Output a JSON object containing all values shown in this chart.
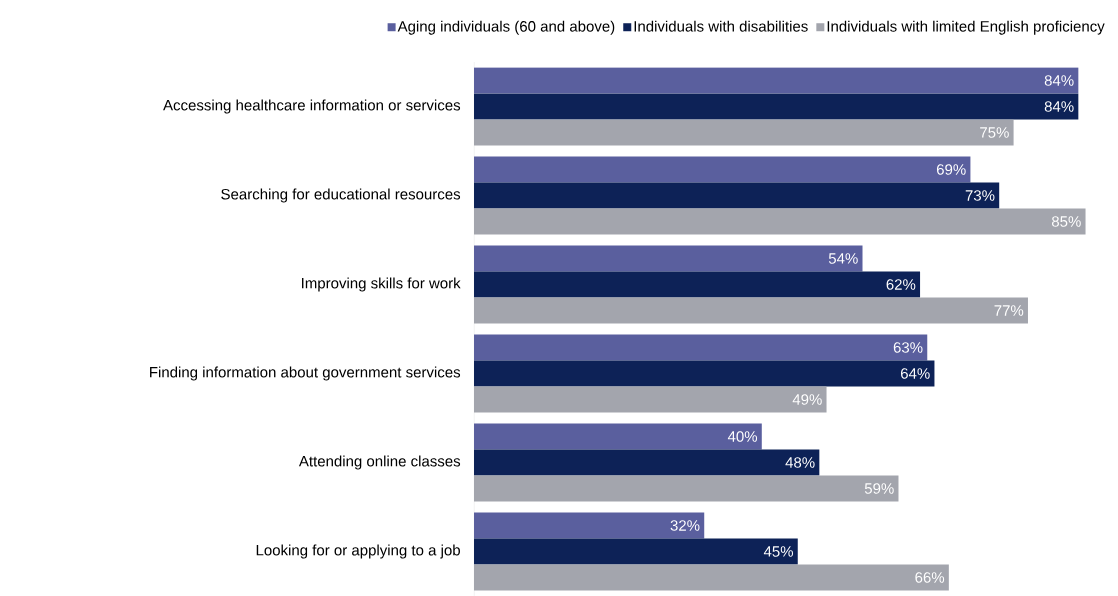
{
  "chart_data": {
    "type": "bar",
    "orientation": "horizontal",
    "legend": "top",
    "categories": [
      "Accessing healthcare information or services",
      "Searching for educational resources",
      "Improving skills for work",
      "Finding information about government services",
      "Attending online classes",
      "Looking for or applying to a job"
    ],
    "series": [
      {
        "name": "Aging individuals (60 and above)",
        "color": "#5a5f9e",
        "values": [
          84,
          69,
          54,
          63,
          40,
          32
        ],
        "value_labels": [
          "84%",
          "69%",
          "54%",
          "63%",
          "40%",
          "32%"
        ]
      },
      {
        "name": "Individuals with disabilities",
        "color": "#0d2257",
        "values": [
          84,
          73,
          62,
          64,
          48,
          45
        ],
        "value_labels": [
          "84%",
          "73%",
          "62%",
          "64%",
          "48%",
          "45%"
        ]
      },
      {
        "name": "Individuals with limited English proficiency",
        "color": "#a3a5ad",
        "values": [
          75,
          85,
          77,
          49,
          59,
          66
        ],
        "value_labels": [
          "75%",
          "85%",
          "77%",
          "49%",
          "59%",
          "66%"
        ]
      }
    ]
  }
}
